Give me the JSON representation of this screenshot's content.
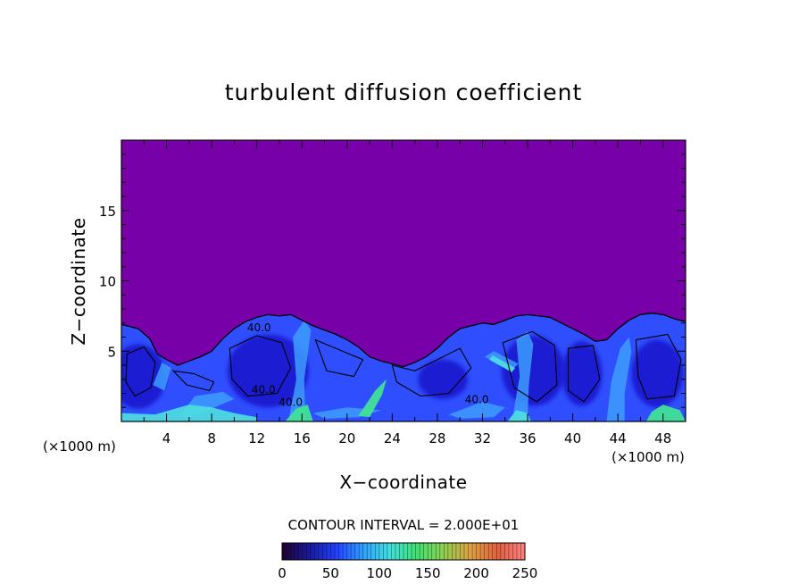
{
  "chart_data": {
    "type": "heatmap",
    "title": "turbulent diffusion coefficient",
    "xlabel": "X−coordinate",
    "ylabel": "Z−coordinate",
    "x_unit_left": "(×1000 m)",
    "x_unit_right": "(×1000 m)",
    "xlim": [
      0,
      50
    ],
    "ylim": [
      0,
      20
    ],
    "x_ticks": [
      4,
      8,
      12,
      16,
      20,
      24,
      28,
      32,
      36,
      40,
      44,
      48
    ],
    "y_ticks": [
      5,
      10,
      15
    ],
    "contour_interval_text": "CONTOUR INTERVAL = 2.000E+01",
    "contour_labels": [
      {
        "x": 12.2,
        "y": 6.4,
        "text": "40.0"
      },
      {
        "x": 12.6,
        "y": 2.0,
        "text": "40.0"
      },
      {
        "x": 15.0,
        "y": 1.1,
        "text": "40.0"
      },
      {
        "x": 31.5,
        "y": 1.3,
        "text": "40.0"
      }
    ],
    "field_description_colors": {
      "background": "#7800a8",
      "deep_blue": "#1f1fd2",
      "blue": "#2f4fff",
      "light_blue": "#3d9cff",
      "cyan": "#4ee0e0",
      "green": "#40e890"
    },
    "colorbar": {
      "min": 0,
      "max": 250,
      "tick_values": [
        0,
        50,
        100,
        150,
        200,
        250
      ],
      "tick_labels": [
        "0",
        "50",
        "100",
        "150",
        "200",
        "250"
      ],
      "stops": [
        "#200030",
        "#1a1a9a",
        "#2040ff",
        "#30a0ff",
        "#40e0e0",
        "#40e070",
        "#90d050",
        "#e0a040",
        "#e06040",
        "#ff8080"
      ]
    }
  }
}
